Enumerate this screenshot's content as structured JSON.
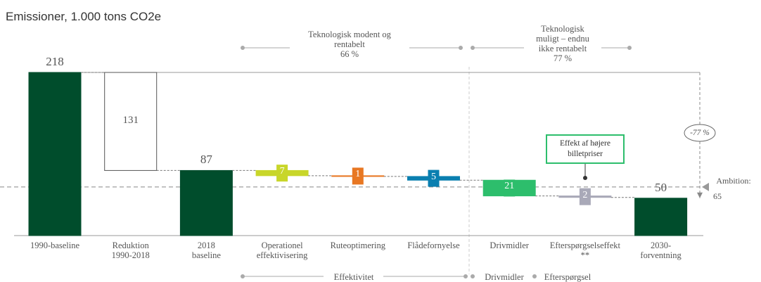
{
  "chart_data": {
    "type": "waterfall",
    "title": "Emissioner, 1.000 tons CO2e",
    "categories": [
      "1990-baseline",
      "Reduktion\n1990-2018",
      "2018\nbaseline",
      "Operationel\neffektivisering",
      "Ruteoptimering",
      "Flådefornyelse",
      "Drivmidler",
      "Efterspørgselseffekt\n**",
      "2030-\nforventning"
    ],
    "values": [
      218,
      -131,
      87,
      -7,
      -1,
      -5,
      -21,
      -2,
      50
    ],
    "value_labels": [
      "218",
      "131",
      "87",
      "7",
      "1",
      "5",
      "21",
      "2",
      "50"
    ],
    "colors": [
      "#004d2c",
      "#ffffff",
      "#004d2c",
      "#c8d62a",
      "#e87722",
      "#0a7fb0",
      "#2dbe6c",
      "#a9a9b8",
      "#004d2c"
    ],
    "ylim": [
      0,
      218
    ],
    "ambition": {
      "label": "Ambition:",
      "value": 65
    },
    "change_label": "-77 %",
    "groups": [
      "Teknologisk modent og\nrentabelt\n66 %",
      "Teknologisk\nmuligt – endnu\nikke rentabelt\n77 %"
    ],
    "bottom_groups": [
      "Effektivitet",
      "Drivmidler",
      "Efterspørgsel"
    ],
    "annotation": "Effekt af højere billetpriser"
  }
}
